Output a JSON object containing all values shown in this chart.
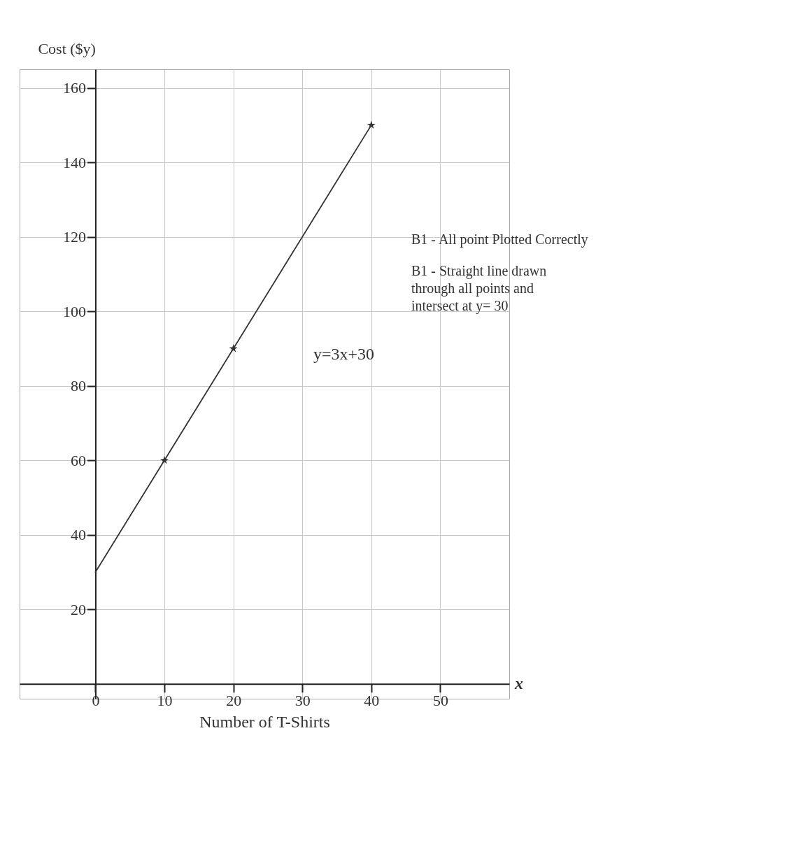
{
  "chart_data": {
    "type": "line",
    "xlabel": "Number of T-Shirts",
    "ylabel": "Cost ($y)",
    "xlim": [
      -11,
      60
    ],
    "ylim": [
      -4,
      165
    ],
    "xticks": [
      0,
      10,
      20,
      30,
      40,
      50
    ],
    "yticks": [
      20,
      40,
      60,
      80,
      100,
      120,
      140,
      160
    ],
    "grid": true,
    "series": [
      {
        "color": "#333333",
        "x": [
          0,
          40
        ],
        "values": [
          30,
          150
        ],
        "line_style": "solid"
      },
      {
        "type": "scatter",
        "color": "#333333",
        "x": [
          10,
          20,
          40
        ],
        "values": [
          60,
          90,
          150
        ],
        "marker": "star"
      }
    ],
    "annotations": [
      "y=3x+30",
      "B1 - All point Plotted Correctly",
      "B1 - Straight line drawn\nthrough all points and\nintersect at y= 30",
      "x"
    ]
  }
}
